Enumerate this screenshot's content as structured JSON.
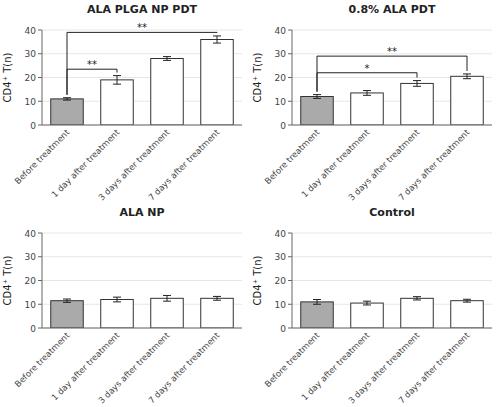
{
  "chart_data": [
    {
      "type": "bar",
      "title": "ALA PLGA NP PDT",
      "categories": [
        "Before treatment",
        "1 day after treatment",
        "3 days after treatment",
        "7 days after treatment"
      ],
      "values": [
        11,
        19,
        28,
        36
      ],
      "errors": [
        0.5,
        1.8,
        0.8,
        1.5
      ],
      "colors": [
        "#aaaaaa",
        "#ffffff",
        "#ffffff",
        "#ffffff"
      ],
      "significance": [
        {
          "from": 0,
          "to": 1,
          "y": 23.5,
          "label": "**"
        },
        {
          "from": 0,
          "to": 3,
          "y": 39.0,
          "label": "**"
        }
      ],
      "ylabel": "CD4⁺ T(n)",
      "ylim": [
        0,
        40
      ],
      "yticks": [
        0,
        10,
        20,
        30,
        40
      ]
    },
    {
      "type": "bar",
      "title": "0.8% ALA PDT",
      "categories": [
        "Before treatment",
        "1 day after treatment",
        "3 days after treatment",
        "7 days after treatment"
      ],
      "values": [
        12,
        13.5,
        17.5,
        20.5
      ],
      "errors": [
        0.8,
        1.0,
        1.2,
        1.0
      ],
      "colors": [
        "#aaaaaa",
        "#ffffff",
        "#ffffff",
        "#ffffff"
      ],
      "significance": [
        {
          "from": 0,
          "to": 2,
          "y": 22.0,
          "label": "*"
        },
        {
          "from": 0,
          "to": 3,
          "y": 29.0,
          "label": "**"
        }
      ],
      "ylabel": "CD4⁺ T(n)",
      "ylim": [
        0,
        40
      ],
      "yticks": [
        0,
        10,
        20,
        30,
        40
      ]
    },
    {
      "type": "bar",
      "title": "ALA NP",
      "categories": [
        "Before treatment",
        "1 day after treatment",
        "3 days after treatment",
        "7 days after treatment"
      ],
      "values": [
        11.5,
        12,
        12.5,
        12.5
      ],
      "errors": [
        0.7,
        1.0,
        1.2,
        0.8
      ],
      "colors": [
        "#aaaaaa",
        "#ffffff",
        "#ffffff",
        "#ffffff"
      ],
      "ylabel": "CD4⁺ T(n)",
      "ylim": [
        0,
        40
      ],
      "yticks": [
        0,
        10,
        20,
        30,
        40
      ]
    },
    {
      "type": "bar",
      "title": "Control",
      "categories": [
        "Before treatment",
        "1 day after treatment",
        "3 days after treatment",
        "7 days after treatment"
      ],
      "values": [
        11,
        10.5,
        12.5,
        11.5
      ],
      "errors": [
        1.0,
        0.8,
        0.7,
        0.6
      ],
      "colors": [
        "#aaaaaa",
        "#ffffff",
        "#ffffff",
        "#ffffff"
      ],
      "ylabel": "CD4⁺ T(n)",
      "ylim": [
        0,
        40
      ],
      "yticks": [
        0,
        10,
        20,
        30,
        40
      ]
    }
  ]
}
